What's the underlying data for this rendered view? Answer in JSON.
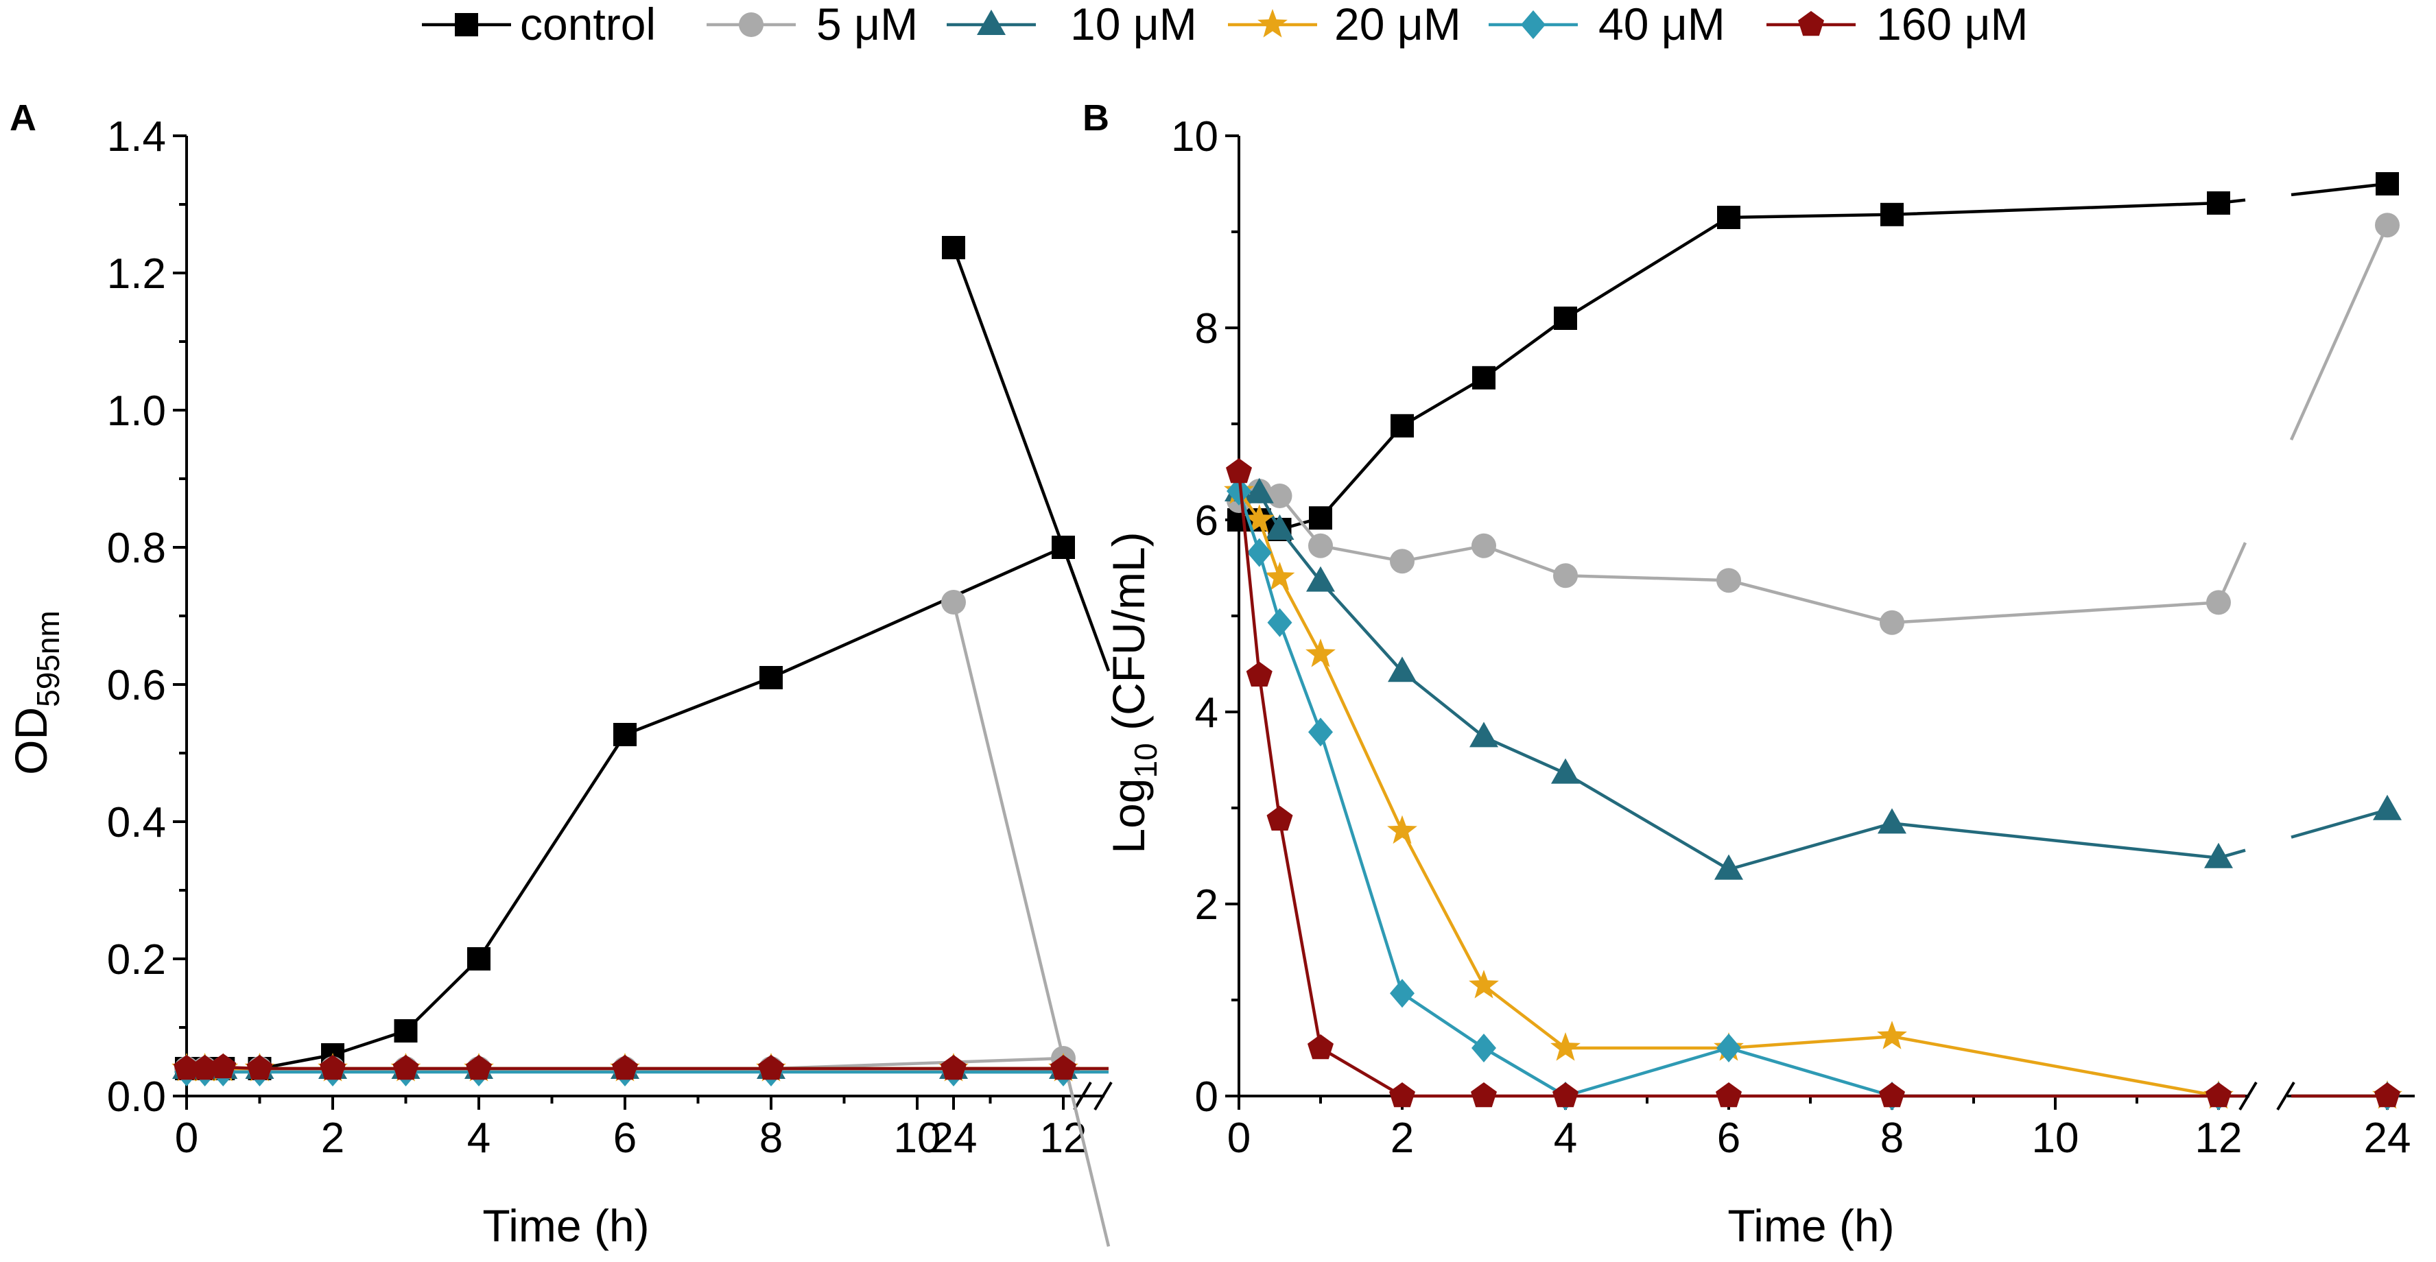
{
  "legend": {
    "entries": [
      {
        "label": "control",
        "color": "#000000",
        "marker": "square"
      },
      {
        "label": "5 μM",
        "color": "#aaaaaa",
        "marker": "circle"
      },
      {
        "label": "10 μM",
        "color": "#236a7c",
        "marker": "triangle"
      },
      {
        "label": "20 μM",
        "color": "#e8a416",
        "marker": "star"
      },
      {
        "label": "40 μM",
        "color": "#2e9ab4",
        "marker": "diamond"
      },
      {
        "label": "160 μM",
        "color": "#8b0c0c",
        "marker": "pentagon"
      }
    ]
  },
  "chart_data": [
    {
      "panel": "A",
      "type": "line",
      "xlabel": "Time (h)",
      "ylabel_main": "OD",
      "ylabel_sub": "595nm",
      "ylim": [
        0,
        1.4
      ],
      "yticks": [
        0.0,
        0.2,
        0.4,
        0.6,
        0.8,
        1.0,
        1.2,
        1.4
      ],
      "ytick_labels": [
        "0.0",
        "0.2",
        "0.4",
        "0.6",
        "0.8",
        "1.0",
        "1.2",
        "1.4"
      ],
      "xticks": [
        0,
        2,
        4,
        6,
        8,
        10,
        12,
        24
      ],
      "xtick_labels": [
        "0",
        "2",
        "4",
        "6",
        "8",
        "10",
        "12",
        "24"
      ],
      "x_break": "between 12 and 24",
      "x": [
        0,
        0.25,
        0.5,
        1,
        2,
        3,
        4,
        6,
        8,
        12,
        24
      ],
      "series": [
        {
          "name": "control",
          "values": [
            0.04,
            0.04,
            0.04,
            0.04,
            0.06,
            0.095,
            0.2,
            0.527,
            0.61,
            0.8,
            1.237
          ]
        },
        {
          "name": "5 μM",
          "values": [
            0.04,
            0.04,
            0.04,
            0.04,
            0.04,
            0.04,
            0.04,
            0.04,
            0.04,
            0.055,
            0.72
          ]
        },
        {
          "name": "10 μM",
          "values": [
            0.04,
            0.04,
            0.04,
            0.04,
            0.04,
            0.04,
            0.04,
            0.04,
            0.04,
            0.04,
            0.04
          ]
        },
        {
          "name": "20 μM",
          "values": [
            0.04,
            0.04,
            0.04,
            0.04,
            0.04,
            0.04,
            0.04,
            0.04,
            0.04,
            0.04,
            0.04
          ]
        },
        {
          "name": "40 μM",
          "values": [
            0.035,
            0.035,
            0.035,
            0.035,
            0.035,
            0.035,
            0.035,
            0.035,
            0.035,
            0.035,
            0.035
          ]
        },
        {
          "name": "160 μM",
          "values": [
            0.04,
            0.04,
            0.042,
            0.04,
            0.04,
            0.04,
            0.04,
            0.04,
            0.04,
            0.04,
            0.04
          ]
        }
      ]
    },
    {
      "panel": "B",
      "type": "line",
      "xlabel": "Time (h)",
      "ylabel_main": "Log",
      "ylabel_sub": "10",
      "ylabel_rest": " (CFU/mL)",
      "ylim": [
        0,
        10
      ],
      "yticks": [
        0,
        2,
        4,
        6,
        8,
        10
      ],
      "ytick_labels": [
        "0",
        "2",
        "4",
        "6",
        "8",
        "10"
      ],
      "xticks": [
        0,
        2,
        4,
        6,
        8,
        10,
        12,
        24
      ],
      "xtick_labels": [
        "0",
        "2",
        "4",
        "6",
        "8",
        "10",
        "12",
        "24"
      ],
      "x_break": "between 12 and 24",
      "x": [
        0,
        0.25,
        0.5,
        1,
        2,
        3,
        4,
        6,
        8,
        12,
        24
      ],
      "series": [
        {
          "name": "control",
          "values": [
            6.0,
            6.0,
            5.9,
            6.02,
            6.98,
            7.48,
            8.1,
            9.15,
            9.18,
            9.3,
            9.5
          ]
        },
        {
          "name": "5 μM",
          "values": [
            6.2,
            6.3,
            6.25,
            5.73,
            5.57,
            5.73,
            5.42,
            5.37,
            4.93,
            5.14,
            9.07
          ]
        },
        {
          "name": "10 μM",
          "values": [
            6.3,
            6.28,
            5.9,
            5.36,
            4.42,
            3.74,
            3.36,
            2.36,
            2.84,
            2.48,
            2.98
          ]
        },
        {
          "name": "20 μM",
          "values": [
            6.3,
            6.0,
            5.4,
            4.6,
            2.76,
            1.15,
            0.5,
            0.5,
            0.62,
            0.0,
            0.0
          ]
        },
        {
          "name": "40 μM",
          "values": [
            6.3,
            5.66,
            4.93,
            3.79,
            1.07,
            0.5,
            0.0,
            0.5,
            0.0,
            0.0,
            0.0
          ]
        },
        {
          "name": "160 μM",
          "values": [
            6.5,
            4.38,
            2.88,
            0.5,
            0.0,
            0.0,
            0.0,
            0.0,
            0.0,
            0.0,
            0.0
          ]
        }
      ]
    }
  ]
}
